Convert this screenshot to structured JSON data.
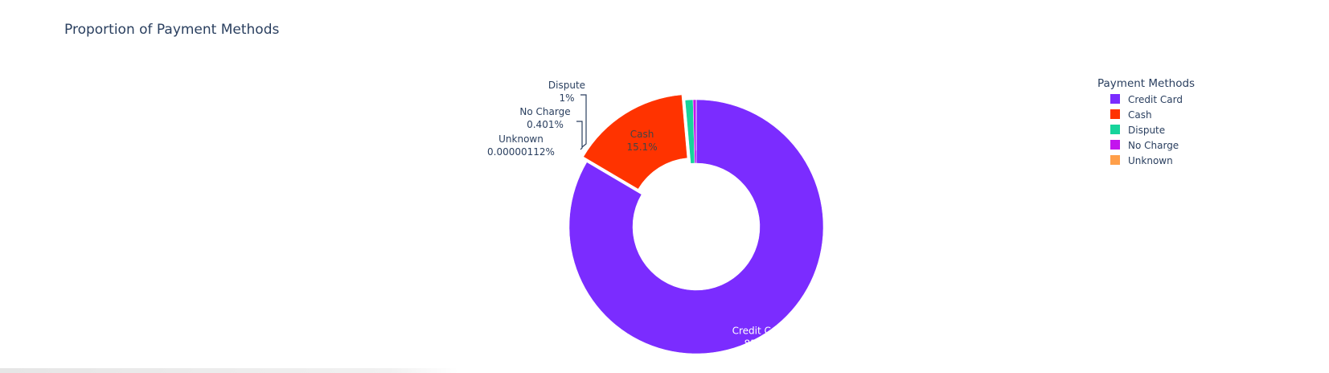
{
  "chart_data": {
    "type": "pie",
    "title": "Proportion of Payment Methods",
    "hole": 0.5,
    "sort": "descending",
    "direction": "clockwise",
    "pull": [
      0,
      0.05,
      0,
      0,
      0.1
    ],
    "legend_title": "Payment Methods",
    "legend_position": "top-right",
    "slices": [
      {
        "label": "Credit Card",
        "value": 83.4,
        "text": "83.4%",
        "color": "#7b2cff",
        "text_position": "inside"
      },
      {
        "label": "Cash",
        "value": 15.1,
        "text": "15.1%",
        "color": "#ff3300",
        "text_position": "inside"
      },
      {
        "label": "Dispute",
        "value": 1.0,
        "text": "1%",
        "color": "#17d49b",
        "text_position": "outside"
      },
      {
        "label": "No Charge",
        "value": 0.401,
        "text": "0.401%",
        "color": "#c314ee",
        "text_position": "outside"
      },
      {
        "label": "Unknown",
        "value": 1.12e-06,
        "text": "0.00000112%",
        "color": "#ff9f4a",
        "text_position": "outside"
      }
    ]
  }
}
